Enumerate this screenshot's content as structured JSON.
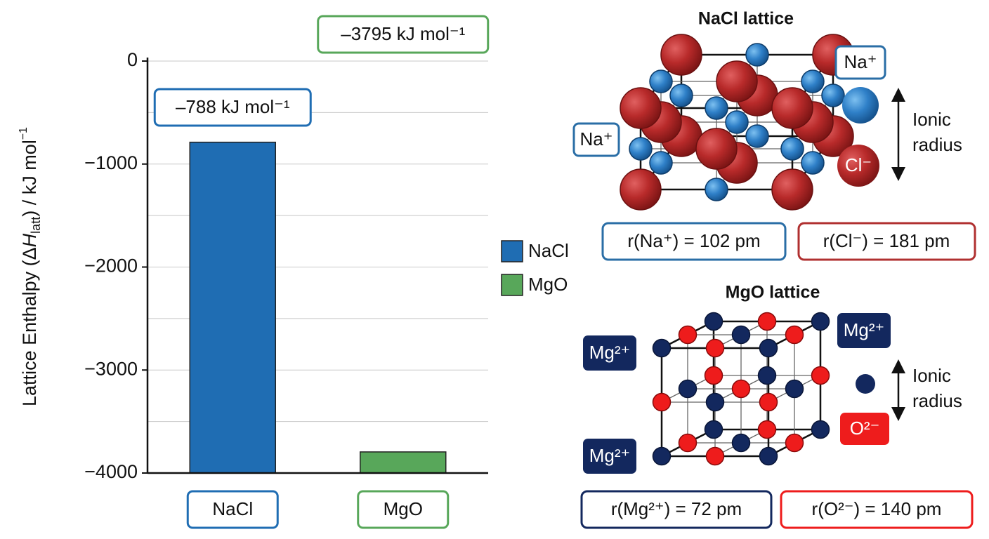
{
  "chart_data": {
    "type": "bar",
    "ylabel_parts": [
      "Lattice Enthalpy (Δ",
      "H",
      "latt",
      ") / kJ mol",
      "−1"
    ],
    "categories": [
      "NaCl",
      "MgO"
    ],
    "series": [
      {
        "name": "NaCl",
        "color": "#1f6db3",
        "values": [
          -788,
          null
        ],
        "value_labels": [
          "–788 kJ mol⁻¹",
          null
        ]
      },
      {
        "name": "MgO",
        "color": "#58a75a",
        "values": [
          null,
          -3795
        ],
        "value_labels": [
          null,
          "–3795 kJ mol⁻¹"
        ]
      }
    ],
    "ylim": [
      -4000,
      0
    ],
    "yticks": [
      0,
      {
        "value": -1000,
        "label": "−1000"
      },
      {
        "value": -2000,
        "label": "−2000"
      },
      {
        "value": -3000,
        "label": "−3000"
      },
      {
        "value": -4000,
        "label": "−4000"
      }
    ],
    "minor_grid": [
      -500,
      -1500,
      -2500,
      -3500
    ],
    "grid": true
  },
  "nacl": {
    "title": "NaCl lattice",
    "labels": [
      "Na⁺",
      "Na⁺"
    ],
    "anion": "Cl⁻",
    "radius_label": [
      "Ionic",
      "radius"
    ],
    "radii": [
      "r(Na⁺) = 102 pm",
      "r(Cl⁻) = 181 pm"
    ]
  },
  "mgo": {
    "title": "MgO lattice",
    "labels": [
      "Mg²⁺",
      "Mg²⁺",
      "Mg²⁺"
    ],
    "anion": "O²⁻",
    "radius_label": [
      "Ionic",
      "radius"
    ],
    "radii": [
      "r(Mg²⁺) = 72 pm",
      "r(O²⁻) = 140 pm"
    ]
  }
}
